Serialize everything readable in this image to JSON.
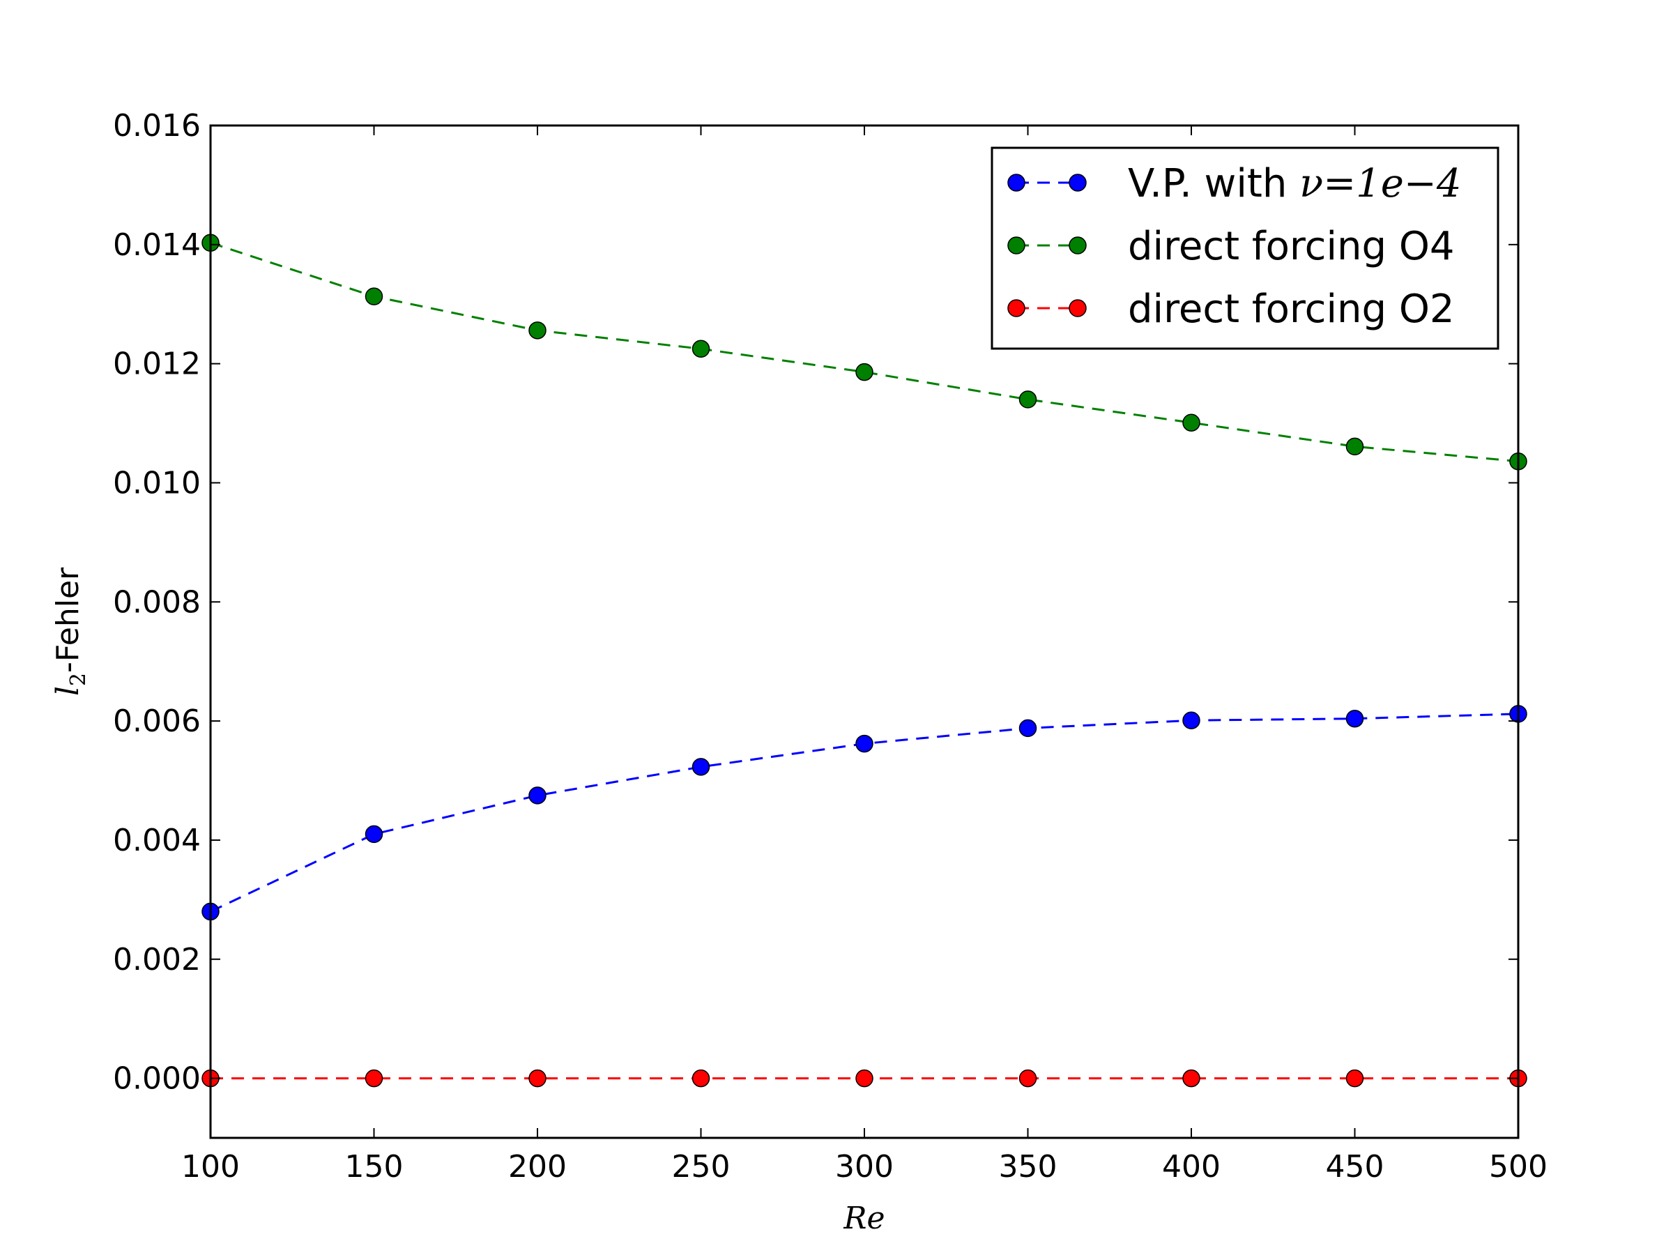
{
  "chart_data": {
    "type": "line",
    "title": "",
    "xlabel": "Re",
    "ylabel_main": "l",
    "ylabel_sub": "2",
    "ylabel_suffix": "-Fehler",
    "xlim": [
      100,
      500
    ],
    "ylim": [
      -0.001,
      0.016
    ],
    "xticks": [
      100,
      150,
      200,
      250,
      300,
      350,
      400,
      450,
      500
    ],
    "xtick_labels": [
      "100",
      "150",
      "200",
      "250",
      "300",
      "350",
      "400",
      "450",
      "500"
    ],
    "yticks": [
      0,
      0.002,
      0.004,
      0.006,
      0.008,
      0.01,
      0.012,
      0.014,
      0.016
    ],
    "ytick_labels": [
      "0.000",
      "0.002",
      "0.004",
      "0.006",
      "0.008",
      "0.010",
      "0.012",
      "0.014",
      "0.016"
    ],
    "grid": false,
    "legend_position": "top-right",
    "x": [
      100,
      150,
      200,
      250,
      300,
      350,
      400,
      450,
      500
    ],
    "series": [
      {
        "name": "V.P. with ν=1e−4",
        "legend_prefix": "V.P. with ",
        "legend_math": "ν=1e−4",
        "color": "#0000ff",
        "values": [
          0.0028,
          0.0041,
          0.00475,
          0.00523,
          0.00562,
          0.00588,
          0.00601,
          0.00604,
          0.00612
        ]
      },
      {
        "name": "direct forcing O4",
        "color": "#008000",
        "values": [
          0.01403,
          0.01313,
          0.01256,
          0.01225,
          0.01186,
          0.0114,
          0.01101,
          0.01061,
          0.01036
        ]
      },
      {
        "name": "direct forcing O2",
        "color": "#ff0000",
        "values": [
          0,
          0,
          0,
          0,
          0,
          0,
          0,
          0,
          0
        ]
      }
    ]
  }
}
